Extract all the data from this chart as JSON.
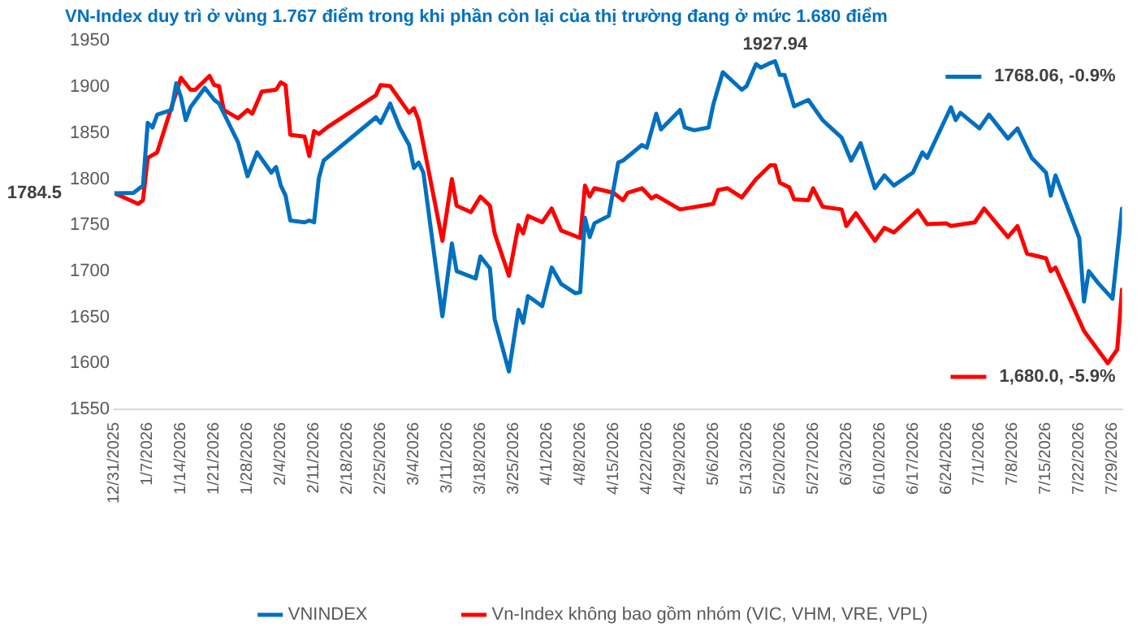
{
  "chart_data": {
    "type": "line",
    "title": "VN-Index duy trì ở vùng 1.767 điểm trong khi phần còn lại của thị trường đang ở mức 1.680 điểm",
    "series": [
      {
        "name": "VNINDEX",
        "color": "#0070c0",
        "x": [
          "2025-12-31",
          "2026-01-04",
          "2026-01-06",
          "2026-01-07",
          "2026-01-08",
          "2026-01-09",
          "2026-01-12",
          "2026-01-13",
          "2026-01-14",
          "2026-01-15",
          "2026-01-16",
          "2026-01-19",
          "2026-01-21",
          "2026-01-22",
          "2026-01-26",
          "2026-01-28",
          "2026-01-30",
          "2026-02-02",
          "2026-02-03",
          "2026-02-04",
          "2026-02-05",
          "2026-02-06",
          "2026-02-09",
          "2026-02-10",
          "2026-02-11",
          "2026-02-12",
          "2026-02-13",
          "2026-02-24",
          "2026-02-25",
          "2026-02-27",
          "2026-03-01",
          "2026-03-03",
          "2026-03-04",
          "2026-03-05",
          "2026-03-06",
          "2026-03-10",
          "2026-03-12",
          "2026-03-13",
          "2026-03-17",
          "2026-03-18",
          "2026-03-20",
          "2026-03-21",
          "2026-03-24",
          "2026-03-26",
          "2026-03-27",
          "2026-03-28",
          "2026-03-31",
          "2026-04-02",
          "2026-04-04",
          "2026-04-07",
          "2026-04-08",
          "2026-04-09",
          "2026-04-10",
          "2026-04-11",
          "2026-04-14",
          "2026-04-16",
          "2026-04-17",
          "2026-04-21",
          "2026-04-22",
          "2026-04-24",
          "2026-04-25",
          "2026-04-29",
          "2026-04-30",
          "2026-05-02",
          "2026-05-05",
          "2026-05-06",
          "2026-05-08",
          "2026-05-12",
          "2026-05-13",
          "2026-05-15",
          "2026-05-16",
          "2026-05-18",
          "2026-05-19",
          "2026-05-20",
          "2026-05-21",
          "2026-05-23",
          "2026-05-26",
          "2026-05-29",
          "2026-06-02",
          "2026-06-04",
          "2026-06-06",
          "2026-06-09",
          "2026-06-11",
          "2026-06-13",
          "2026-06-17",
          "2026-06-19",
          "2026-06-20",
          "2026-06-25",
          "2026-06-26",
          "2026-06-27",
          "2026-07-01",
          "2026-07-03",
          "2026-07-07",
          "2026-07-09",
          "2026-07-12",
          "2026-07-15",
          "2026-07-16",
          "2026-07-17",
          "2026-07-22",
          "2026-07-23",
          "2026-07-24",
          "2026-07-26",
          "2026-07-29",
          "2026-07-31"
        ],
        "values": [
          1784.5,
          1785,
          1793,
          1861,
          1856,
          1870,
          1875,
          1904,
          1889,
          1864,
          1878,
          1899,
          1886,
          1882,
          1840,
          1803,
          1829,
          1807,
          1813,
          1793,
          1782,
          1755,
          1753,
          1755,
          1753,
          1801,
          1820,
          1867,
          1861,
          1882,
          1856,
          1837,
          1812,
          1818,
          1807,
          1651,
          1730,
          1700,
          1692,
          1716,
          1703,
          1648,
          1591,
          1658,
          1644,
          1673,
          1662,
          1704,
          1686,
          1676,
          1677,
          1758,
          1737,
          1752,
          1760,
          1818,
          1820,
          1837,
          1834,
          1871,
          1854,
          1875,
          1856,
          1853,
          1856,
          1881,
          1916,
          1897,
          1901,
          1925,
          1921,
          1926,
          1927.94,
          1913,
          1913,
          1879,
          1886,
          1864,
          1845,
          1820,
          1839,
          1790,
          1804,
          1793,
          1807,
          1829,
          1823,
          1878,
          1864,
          1872,
          1855,
          1870,
          1844,
          1855,
          1823,
          1807,
          1782,
          1804,
          1736,
          1667,
          1700,
          1687,
          1670,
          1768.06
        ]
      },
      {
        "name": "Vn-Index không bao gồm nhóm (VIC, VHM, VRE, VPL)",
        "color": "#ff0000",
        "x": [
          "2025-12-31",
          "2026-01-05",
          "2026-01-06",
          "2026-01-07",
          "2026-01-09",
          "2026-01-12",
          "2026-01-14",
          "2026-01-16",
          "2026-01-17",
          "2026-01-20",
          "2026-01-21",
          "2026-01-22",
          "2026-01-23",
          "2026-01-26",
          "2026-01-28",
          "2026-01-29",
          "2026-01-31",
          "2026-02-03",
          "2026-02-04",
          "2026-02-05",
          "2026-02-06",
          "2026-02-09",
          "2026-02-10",
          "2026-02-11",
          "2026-02-12",
          "2026-02-14",
          "2026-02-24",
          "2026-02-25",
          "2026-02-27",
          "2026-03-03",
          "2026-03-04",
          "2026-03-05",
          "2026-03-10",
          "2026-03-12",
          "2026-03-13",
          "2026-03-16",
          "2026-03-18",
          "2026-03-20",
          "2026-03-21",
          "2026-03-24",
          "2026-03-26",
          "2026-03-27",
          "2026-03-28",
          "2026-03-31",
          "2026-04-02",
          "2026-04-04",
          "2026-04-08",
          "2026-04-09",
          "2026-04-10",
          "2026-04-11",
          "2026-04-15",
          "2026-04-17",
          "2026-04-18",
          "2026-04-21",
          "2026-04-23",
          "2026-04-24",
          "2026-04-29",
          "2026-05-06",
          "2026-05-07",
          "2026-05-09",
          "2026-05-12",
          "2026-05-15",
          "2026-05-18",
          "2026-05-19",
          "2026-05-20",
          "2026-05-22",
          "2026-05-23",
          "2026-05-26",
          "2026-05-27",
          "2026-05-29",
          "2026-06-02",
          "2026-06-03",
          "2026-06-05",
          "2026-06-09",
          "2026-06-11",
          "2026-06-13",
          "2026-06-18",
          "2026-06-20",
          "2026-06-24",
          "2026-06-25",
          "2026-06-30",
          "2026-07-02",
          "2026-07-07",
          "2026-07-09",
          "2026-07-11",
          "2026-07-15",
          "2026-07-16",
          "2026-07-17",
          "2026-07-23",
          "2026-07-24",
          "2026-07-28",
          "2026-07-30",
          "2026-07-31"
        ],
        "values": [
          1784.5,
          1773,
          1777,
          1823,
          1829,
          1878,
          1910,
          1897,
          1897,
          1912,
          1902,
          1901,
          1875,
          1866,
          1875,
          1871,
          1895,
          1897,
          1905,
          1902,
          1848,
          1846,
          1825,
          1852,
          1849,
          1857,
          1891,
          1902,
          1901,
          1872,
          1877,
          1864,
          1733,
          1800,
          1771,
          1764,
          1781,
          1771,
          1741,
          1695,
          1750,
          1741,
          1760,
          1753,
          1768,
          1744,
          1736,
          1793,
          1781,
          1790,
          1785,
          1777,
          1785,
          1790,
          1779,
          1782,
          1767,
          1773,
          1788,
          1790,
          1780,
          1800,
          1815,
          1815,
          1796,
          1791,
          1778,
          1777,
          1790,
          1770,
          1767,
          1749,
          1763,
          1733,
          1747,
          1742,
          1766,
          1751,
          1752,
          1749,
          1753,
          1768,
          1737,
          1749,
          1719,
          1714,
          1700,
          1704,
          1635,
          1628,
          1600,
          1615,
          1680.0
        ]
      }
    ],
    "xlim": [
      "2025-12-31",
      "2026-07-31"
    ],
    "xticks": [
      {
        "value": "2025-12-31",
        "label": "12/31/2025"
      },
      {
        "value": "2026-01-07",
        "label": "1/7/2026"
      },
      {
        "value": "2026-01-14",
        "label": "1/14/2026"
      },
      {
        "value": "2026-01-21",
        "label": "1/21/2026"
      },
      {
        "value": "2026-01-28",
        "label": "1/28/2026"
      },
      {
        "value": "2026-02-04",
        "label": "2/4/2026"
      },
      {
        "value": "2026-02-11",
        "label": "2/11/2026"
      },
      {
        "value": "2026-02-18",
        "label": "2/18/2026"
      },
      {
        "value": "2026-02-25",
        "label": "2/25/2026"
      },
      {
        "value": "2026-03-04",
        "label": "3/4/2026"
      },
      {
        "value": "2026-03-11",
        "label": "3/11/2026"
      },
      {
        "value": "2026-03-18",
        "label": "3/18/2026"
      },
      {
        "value": "2026-03-25",
        "label": "3/25/2026"
      },
      {
        "value": "2026-04-01",
        "label": "4/1/2026"
      },
      {
        "value": "2026-04-08",
        "label": "4/8/2026"
      },
      {
        "value": "2026-04-15",
        "label": "4/15/2026"
      },
      {
        "value": "2026-04-22",
        "label": "4/22/2026"
      },
      {
        "value": "2026-04-29",
        "label": "4/29/2026"
      },
      {
        "value": "2026-05-06",
        "label": "5/6/2026"
      },
      {
        "value": "2026-05-13",
        "label": "5/13/2026"
      },
      {
        "value": "2026-05-20",
        "label": "5/20/2026"
      },
      {
        "value": "2026-05-27",
        "label": "5/27/2026"
      },
      {
        "value": "2026-06-03",
        "label": "6/3/2026"
      },
      {
        "value": "2026-06-10",
        "label": "6/10/2026"
      },
      {
        "value": "2026-06-17",
        "label": "6/17/2026"
      },
      {
        "value": "2026-06-24",
        "label": "6/24/2026"
      },
      {
        "value": "2026-07-01",
        "label": "7/1/2026"
      },
      {
        "value": "2026-07-08",
        "label": "7/8/2026"
      },
      {
        "value": "2026-07-15",
        "label": "7/15/2026"
      },
      {
        "value": "2026-07-22",
        "label": "7/22/2026"
      },
      {
        "value": "2026-07-29",
        "label": "7/29/2026"
      }
    ],
    "ylim": [
      1550,
      1950
    ],
    "yticks": [
      1550,
      1600,
      1650,
      1700,
      1750,
      1800,
      1850,
      1900,
      1950
    ],
    "annotations": [
      {
        "text": "1784.5",
        "x": "2025-12-31",
        "y": 1784.5
      },
      {
        "text": "1927.94",
        "x": "2026-05-19",
        "y": 1927.94
      },
      "1768.06, -0.9%",
      "1,680.0, -5.9%"
    ],
    "legend": "bottom",
    "marker": "none",
    "line_style": "solid"
  }
}
